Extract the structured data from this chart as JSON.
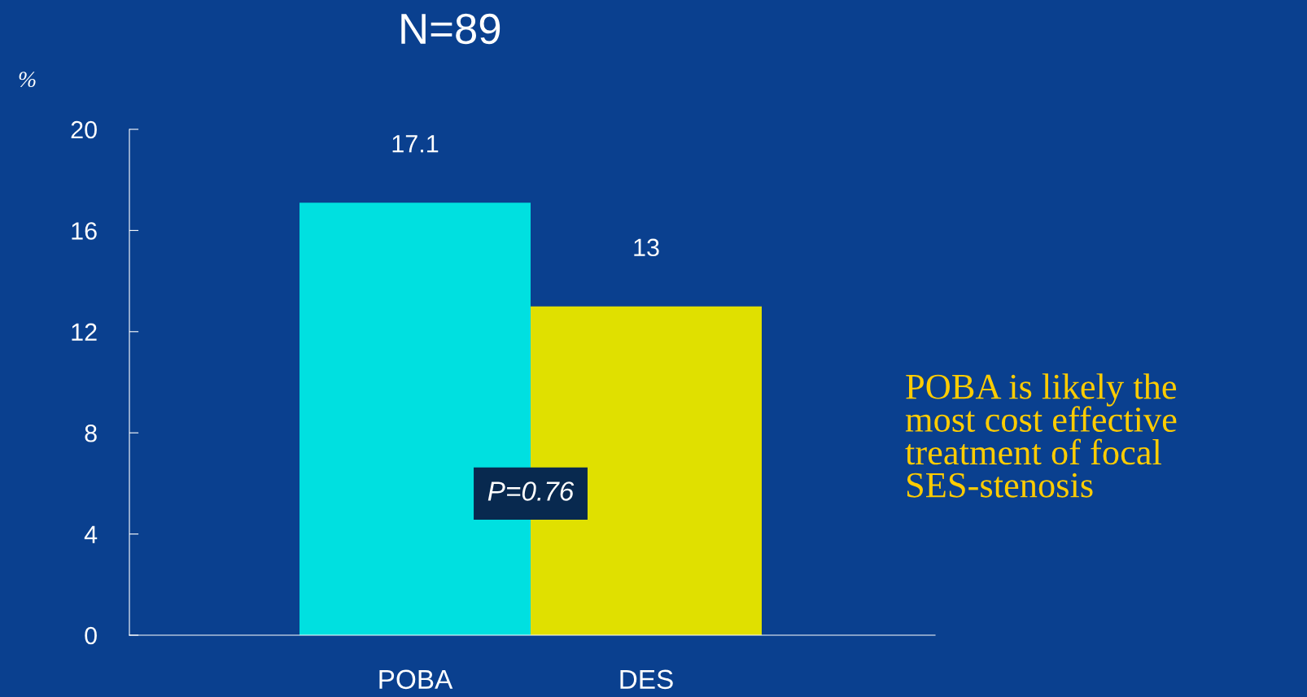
{
  "chart_data": {
    "type": "bar",
    "title": "N=89",
    "ylabel": "%",
    "categories": [
      "POBA",
      "DES"
    ],
    "values": [
      17.1,
      13
    ],
    "colors": [
      "#00e0e0",
      "#e0e000"
    ],
    "ylim": [
      0,
      20
    ],
    "yticks": [
      0,
      4,
      8,
      12,
      16,
      20
    ],
    "data_labels": true,
    "grid": false,
    "legend": false,
    "annotations": [
      "P=0.76",
      "POBA is likely the\nmost cost effective\ntreatment of focal\nSES-stenosis"
    ]
  }
}
